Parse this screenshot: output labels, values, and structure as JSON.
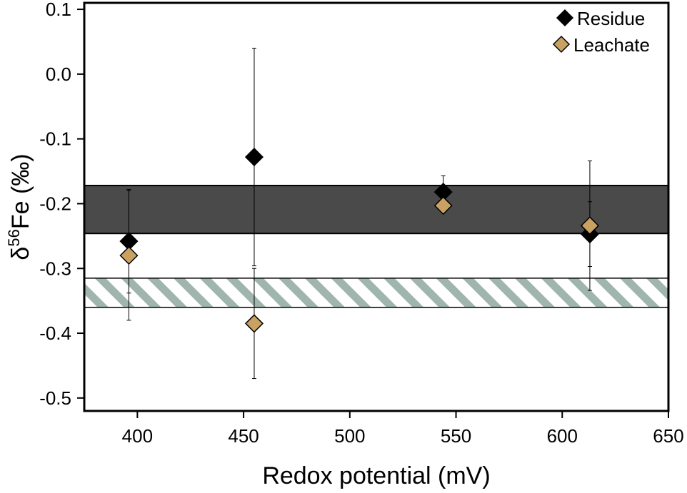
{
  "chart_data": {
    "type": "scatter",
    "xlabel": "Redox potential (mV)",
    "ylabel": {
      "prefix": "δ",
      "sup": "56",
      "suffix": "Fe (‰)"
    },
    "xlim": [
      375,
      650
    ],
    "ylim": [
      -0.52,
      0.11
    ],
    "xticks": [
      400,
      450,
      500,
      550,
      600,
      650
    ],
    "yticks": [
      0.1,
      0.0,
      -0.1,
      -0.2,
      -0.3,
      -0.4,
      -0.5
    ],
    "ytick_labels": [
      "0.1",
      "0.0",
      "-0.1",
      "-0.2",
      "-0.3",
      "-0.4",
      "-0.5"
    ],
    "legend_position": "top-right",
    "series": [
      {
        "name": "Residue",
        "color": "#000000",
        "marker": "diamond",
        "points": [
          {
            "x": 396,
            "y": -0.258,
            "err": 0.08
          },
          {
            "x": 455,
            "y": -0.128,
            "err": 0.168
          },
          {
            "x": 544,
            "y": -0.182,
            "err": 0.025
          },
          {
            "x": 613,
            "y": -0.247,
            "err": 0.05
          }
        ]
      },
      {
        "name": "Leachate",
        "color": "#c9a263",
        "marker": "diamond",
        "points": [
          {
            "x": 396,
            "y": -0.28,
            "err": 0.1
          },
          {
            "x": 455,
            "y": -0.385,
            "err": 0.085
          },
          {
            "x": 544,
            "y": -0.203,
            "err": 0.0
          },
          {
            "x": 613,
            "y": -0.234,
            "err": 0.1
          }
        ]
      }
    ],
    "bands": [
      {
        "style": "solid",
        "color": "#4a4a4a",
        "y_range": [
          -0.246,
          -0.172
        ]
      },
      {
        "style": "hatched",
        "color": "#9fb5ad",
        "y_range": [
          -0.36,
          -0.315
        ]
      }
    ]
  }
}
